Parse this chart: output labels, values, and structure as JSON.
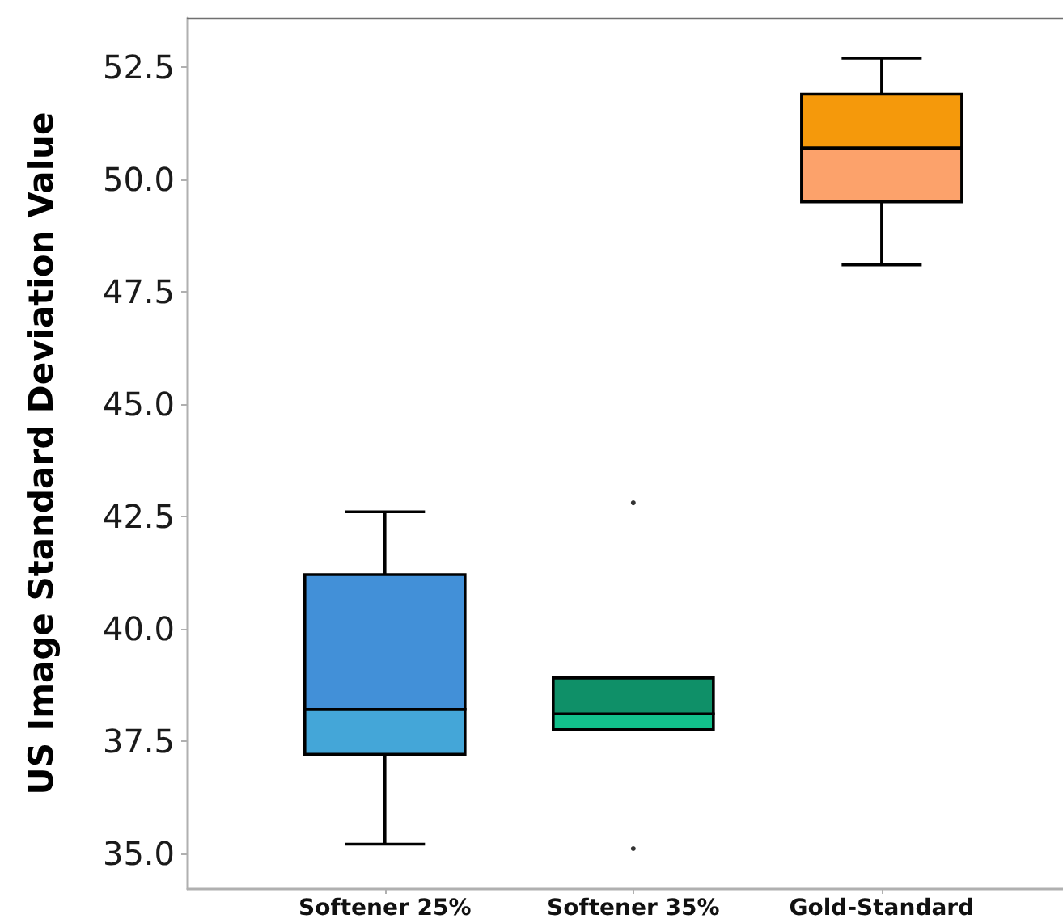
{
  "chart_data": {
    "type": "box",
    "ylabel": "US Image Standard Deviation Value",
    "categories": [
      "Softener 25%",
      "Softener 35%",
      "Gold-Standard"
    ],
    "boxes": [
      {
        "low": 35.2,
        "q1": 37.2,
        "median": 38.2,
        "q3": 41.2,
        "high": 42.6
      },
      {
        "low": 37.75,
        "q1": 37.75,
        "median": 38.1,
        "q3": 38.9,
        "high": 38.9,
        "outliers": [
          42.8,
          35.1
        ]
      },
      {
        "low": 48.1,
        "q1": 49.5,
        "median": 50.7,
        "q3": 51.9,
        "high": 52.7
      }
    ],
    "colors": [
      [
        "#44a6d8",
        "#4290d8"
      ],
      [
        "#12c08b",
        "#0f9068"
      ],
      [
        "#fca26b",
        "#f5990b"
      ]
    ],
    "ylim": [
      34.2,
      53.6
    ],
    "yticks": [
      {
        "value": 35,
        "label": "35.0"
      },
      37.5,
      {
        "value": 40,
        "label": "40.0"
      },
      42.5,
      {
        "value": 45,
        "label": "45.0"
      },
      47.5,
      {
        "value": 50,
        "label": "50.0"
      },
      52.5
    ],
    "grid": false
  }
}
